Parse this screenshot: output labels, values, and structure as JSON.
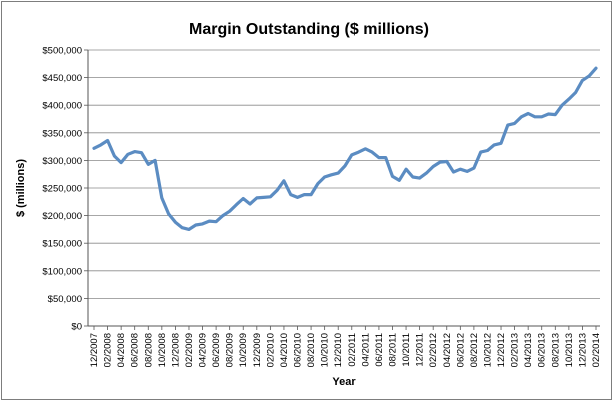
{
  "chart_data": {
    "type": "line",
    "title": "Margin Outstanding ($ millions)",
    "xlabel": "Year",
    "ylabel": "$ (millions)",
    "ylim": [
      0,
      500000
    ],
    "yticks": [
      0,
      50000,
      100000,
      150000,
      200000,
      250000,
      300000,
      350000,
      400000,
      450000,
      500000
    ],
    "ytick_labels": [
      "$0",
      "$50,000",
      "$100,000",
      "$150,000",
      "$200,000",
      "$250,000",
      "$300,000",
      "$350,000",
      "$400,000",
      "$450,000",
      "$500,000"
    ],
    "xtick_labels": [
      "12/2007",
      "02/2008",
      "04/2008",
      "06/2008",
      "08/2008",
      "10/2008",
      "12/2008",
      "02/2009",
      "04/2009",
      "06/2009",
      "08/2009",
      "10/2009",
      "12/2009",
      "02/2010",
      "04/2010",
      "06/2010",
      "08/2010",
      "10/2010",
      "12/2010",
      "02/2011",
      "04/2011",
      "06/2011",
      "08/2011",
      "10/2011",
      "12/2011",
      "02/2012",
      "04/2012",
      "06/2012",
      "08/2012",
      "10/2012",
      "12/2012",
      "02/2013",
      "04/2013",
      "06/2013",
      "08/2013",
      "10/2013",
      "12/2013",
      "02/2014"
    ],
    "grid": true,
    "line_color": "#5b8cc2",
    "series": [
      {
        "values": [
          322000,
          328000,
          336000,
          308000,
          296000,
          311000,
          316000,
          314000,
          293000,
          300000,
          232000,
          203000,
          188000,
          178000,
          175000,
          183000,
          185000,
          190000,
          189000,
          200000,
          208000,
          220000,
          231000,
          221000,
          232000,
          233000,
          234000,
          246000,
          263000,
          238000,
          233000,
          238000,
          238000,
          258000,
          270000,
          274000,
          277000,
          290000,
          310000,
          315000,
          321000,
          315000,
          305000,
          305000,
          271000,
          264000,
          284000,
          270000,
          268000,
          277000,
          289000,
          297000,
          298000,
          279000,
          284000,
          280000,
          286000,
          315000,
          318000,
          328000,
          331000,
          364000,
          367000,
          379000,
          385000,
          379000,
          379000,
          384000,
          383000,
          400000,
          411000,
          423000,
          445000,
          453000,
          467000
        ]
      }
    ]
  }
}
